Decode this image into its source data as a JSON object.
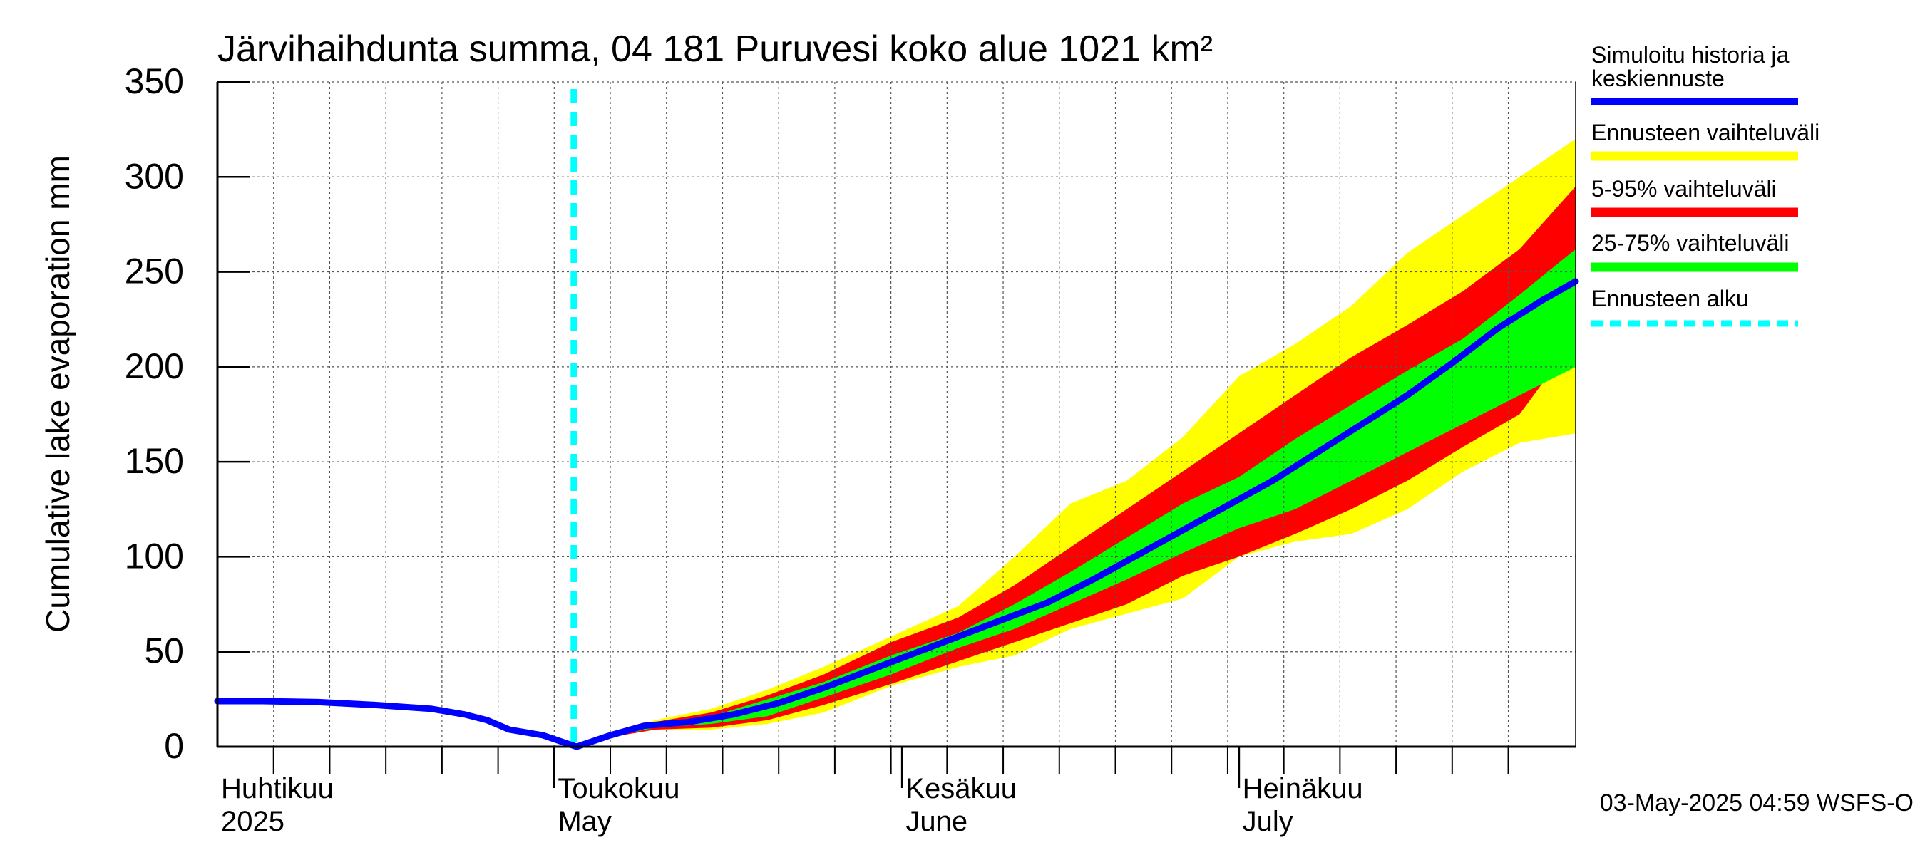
{
  "chart_data": {
    "type": "area",
    "title": "Järvihaihdunta summa, 04 181 Puruvesi koko alue 1021 km²",
    "ylabel": "Cumulative lake evaporation   mm",
    "ylim": [
      0,
      350
    ],
    "yticks": [
      0,
      50,
      100,
      150,
      200,
      250,
      300,
      350
    ],
    "xlim": [
      "2025-04-01",
      "2025-07-31"
    ],
    "grid": true,
    "month_labels": [
      {
        "date": "2025-04-01",
        "line1": "Huhtikuu",
        "line2": "2025"
      },
      {
        "date": "2025-05-01",
        "line1": "Toukokuu",
        "line2": "May"
      },
      {
        "date": "2025-06-01",
        "line1": "Kesäkuu",
        "line2": "June"
      },
      {
        "date": "2025-07-01",
        "line1": "Heinäkuu",
        "line2": "July"
      }
    ],
    "forecast_start": "2025-05-03",
    "series": [
      {
        "name": "Simuloitu historia ja keskiennuste",
        "color": "#0000ff",
        "x": [
          "2025-04-01",
          "2025-04-05",
          "2025-04-10",
          "2025-04-15",
          "2025-04-20",
          "2025-04-23",
          "2025-04-25",
          "2025-04-27",
          "2025-04-30",
          "2025-05-02",
          "2025-05-03",
          "2025-05-04",
          "2025-05-06",
          "2025-05-09",
          "2025-05-13",
          "2025-05-17",
          "2025-05-21",
          "2025-05-25",
          "2025-05-29",
          "2025-06-02",
          "2025-06-06",
          "2025-06-10",
          "2025-06-14",
          "2025-06-18",
          "2025-06-22",
          "2025-06-26",
          "2025-06-30",
          "2025-07-04",
          "2025-07-08",
          "2025-07-12",
          "2025-07-16",
          "2025-07-20",
          "2025-07-24",
          "2025-07-28",
          "2025-07-31"
        ],
        "y": [
          24,
          24,
          23.5,
          22,
          20,
          17,
          14,
          9,
          6,
          2,
          0,
          2,
          6,
          11,
          13,
          17,
          23,
          31,
          40,
          49,
          58,
          67,
          76,
          88,
          101,
          114,
          127,
          140,
          155,
          170,
          185,
          202,
          220,
          235,
          245
        ]
      }
    ],
    "bands": [
      {
        "name": "Ennusteen vaihteluväli",
        "color": "#ffff00",
        "x": [
          "2025-05-03",
          "2025-05-06",
          "2025-05-10",
          "2025-05-15",
          "2025-05-20",
          "2025-05-25",
          "2025-05-31",
          "2025-06-06",
          "2025-06-11",
          "2025-06-16",
          "2025-06-21",
          "2025-06-26",
          "2025-07-01",
          "2025-07-06",
          "2025-07-11",
          "2025-07-16",
          "2025-07-21",
          "2025-07-26",
          "2025-07-31"
        ],
        "upper": [
          0,
          7,
          14,
          20,
          30,
          42,
          58,
          74,
          100,
          128,
          140,
          163,
          195,
          212,
          232,
          260,
          280,
          300,
          320
        ],
        "lower": [
          0,
          5,
          9,
          9,
          12,
          18,
          32,
          42,
          48,
          62,
          70,
          78,
          100,
          108,
          112,
          125,
          145,
          160,
          165
        ]
      },
      {
        "name": "5-95% vaihteluväli",
        "color": "#ff0000",
        "x": [
          "2025-05-03",
          "2025-05-06",
          "2025-05-10",
          "2025-05-15",
          "2025-05-20",
          "2025-05-25",
          "2025-05-31",
          "2025-06-06",
          "2025-06-11",
          "2025-06-16",
          "2025-06-21",
          "2025-06-26",
          "2025-07-01",
          "2025-07-06",
          "2025-07-11",
          "2025-07-16",
          "2025-07-21",
          "2025-07-26",
          "2025-07-31"
        ],
        "upper": [
          0,
          6,
          13,
          18,
          27,
          38,
          55,
          68,
          85,
          105,
          125,
          145,
          165,
          185,
          205,
          222,
          240,
          262,
          295
        ],
        "lower": [
          0,
          5,
          9,
          10,
          14,
          22,
          33,
          45,
          55,
          65,
          75,
          90,
          100,
          112,
          125,
          140,
          158,
          175,
          215
        ]
      },
      {
        "name": "25-75% vaihteluväli",
        "color": "#00ff00",
        "x": [
          "2025-05-03",
          "2025-05-06",
          "2025-05-10",
          "2025-05-15",
          "2025-05-20",
          "2025-05-25",
          "2025-05-31",
          "2025-06-06",
          "2025-06-11",
          "2025-06-16",
          "2025-06-21",
          "2025-06-26",
          "2025-07-01",
          "2025-07-06",
          "2025-07-11",
          "2025-07-16",
          "2025-07-21",
          "2025-07-26",
          "2025-07-31"
        ],
        "upper": [
          0,
          6,
          12,
          16,
          25,
          34,
          48,
          60,
          75,
          92,
          110,
          128,
          142,
          162,
          180,
          198,
          215,
          238,
          262
        ],
        "lower": [
          0,
          5,
          10,
          12,
          16,
          26,
          38,
          52,
          62,
          75,
          88,
          102,
          115,
          125,
          140,
          155,
          170,
          185,
          200
        ]
      }
    ],
    "legend": {
      "placement": "right",
      "items": [
        {
          "label": "Simuloitu historia ja keskiennuste",
          "color": "#0000ff",
          "style": "line"
        },
        {
          "label": "Ennusteen vaihteluväli",
          "color": "#ffff00",
          "style": "band"
        },
        {
          "label": "5-95% vaihteluväli",
          "color": "#ff0000",
          "style": "band"
        },
        {
          "label": "25-75% vaihteluväli",
          "color": "#00ff00",
          "style": "band"
        },
        {
          "label": "Ennusteen alku",
          "color": "#00ffff",
          "style": "dashed"
        }
      ]
    },
    "footer": "03-May-2025 04:59 WSFS-O"
  }
}
